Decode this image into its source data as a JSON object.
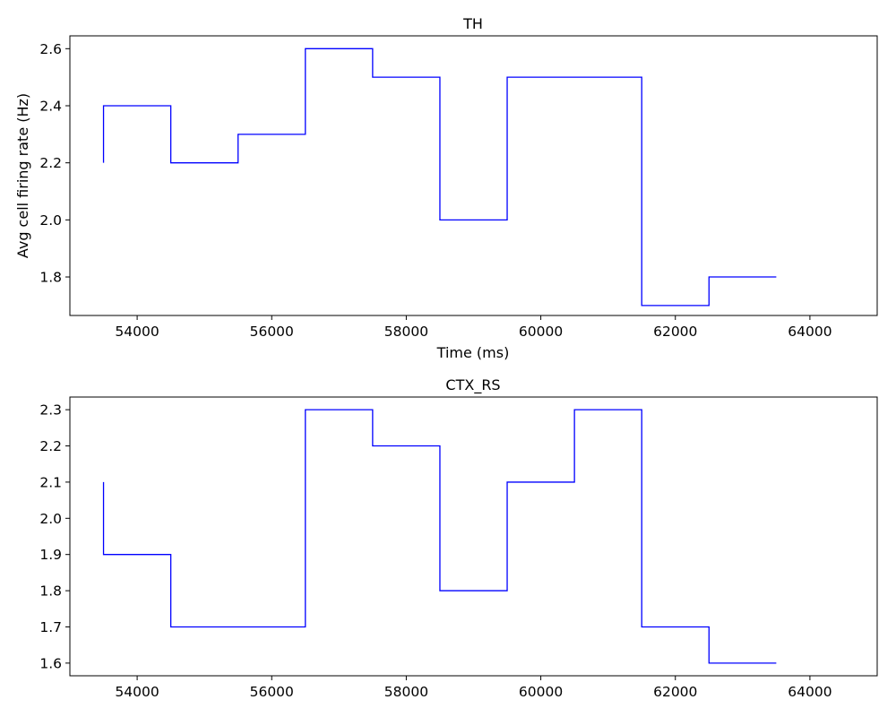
{
  "colors": {
    "line": "#0000ff",
    "axes": "#000000",
    "background": "#ffffff"
  },
  "chart_data": [
    {
      "type": "line",
      "drawstyle": "steps-post",
      "title": "TH",
      "xlabel": "Time (ms)",
      "ylabel": "Avg cell firing rate (Hz)",
      "xlim": [
        53000,
        65000
      ],
      "ylim": [
        1.665,
        2.645
      ],
      "xticks": [
        54000,
        56000,
        58000,
        60000,
        62000,
        64000
      ],
      "xtick_labels": [
        "54000",
        "56000",
        "58000",
        "60000",
        "62000",
        "64000"
      ],
      "yticks": [
        1.8,
        2.0,
        2.2,
        2.4,
        2.6
      ],
      "ytick_labels": [
        "1.8",
        "2.0",
        "2.2",
        "2.4",
        "2.6"
      ],
      "grid": false,
      "series": [
        {
          "x": [
            53500,
            53500,
            54500,
            55500,
            56500,
            57500,
            58500,
            59500,
            60500,
            61500,
            62500,
            63500
          ],
          "y": [
            2.2,
            2.4,
            2.2,
            2.3,
            2.6,
            2.5,
            2.0,
            2.5,
            2.5,
            1.7,
            1.8,
            1.8
          ]
        }
      ]
    },
    {
      "type": "line",
      "drawstyle": "steps-post",
      "title": "CTX_RS",
      "xlabel": "",
      "ylabel": "",
      "xlim": [
        53000,
        65000
      ],
      "ylim": [
        1.565,
        2.335
      ],
      "xticks": [
        54000,
        56000,
        58000,
        60000,
        62000,
        64000
      ],
      "xtick_labels": [
        "54000",
        "56000",
        "58000",
        "60000",
        "62000",
        "64000"
      ],
      "yticks": [
        1.6,
        1.7,
        1.8,
        1.9,
        2.0,
        2.1,
        2.2,
        2.3
      ],
      "ytick_labels": [
        "1.6",
        "1.7",
        "1.8",
        "1.9",
        "2.0",
        "2.1",
        "2.2",
        "2.3"
      ],
      "grid": false,
      "series": [
        {
          "x": [
            53500,
            53500,
            54500,
            55500,
            56500,
            57500,
            58500,
            59500,
            60500,
            61500,
            62500,
            63500
          ],
          "y": [
            2.1,
            1.9,
            1.7,
            1.7,
            2.3,
            2.2,
            1.8,
            2.1,
            2.3,
            1.7,
            1.6,
            1.6
          ]
        }
      ]
    }
  ]
}
